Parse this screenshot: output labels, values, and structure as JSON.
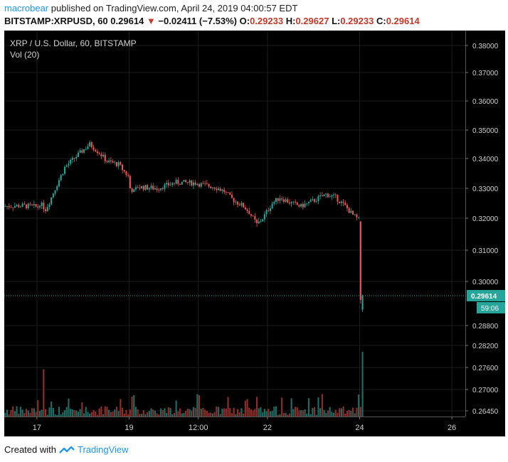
{
  "header": {
    "user": "macrobear",
    "published_text": "published on TradingView.com, April 24, 2019 04:00:57 EDT",
    "symbol_line": "BITSTAMP:XRPUSD, 60",
    "last": "0.29614",
    "change": "−0.02411 (−7.53%)",
    "o_label": "O:",
    "o": "0.29233",
    "h_label": "H:",
    "h": "0.29627",
    "l_label": "L:",
    "l": "0.29233",
    "c_label": "C:",
    "c": "0.29614"
  },
  "footer": {
    "created_with": "Created with",
    "brand": "TradingView"
  },
  "colors": {
    "up": "#26a69a",
    "down": "#ef5350",
    "vol_up": "#1f6b63",
    "vol_down": "#8b2e2c",
    "bg": "#000000",
    "price_line": "#26a69a"
  },
  "chart_data": {
    "type": "candlestick",
    "title": "XRP / U.S. Dollar, 60, BITSTAMP",
    "indicator": "Vol (20)",
    "ylim": [
      0.261,
      0.386
    ],
    "y_ticks": [
      "0.38000",
      "0.37000",
      "0.36000",
      "0.35000",
      "0.34000",
      "0.33000",
      "0.32000",
      "0.31000",
      "0.30000",
      "0.28800",
      "0.28200",
      "0.27600",
      "0.27000",
      "0.26450"
    ],
    "y_tick_values": [
      0.38,
      0.37,
      0.36,
      0.35,
      0.34,
      0.33,
      0.32,
      0.31,
      0.3,
      0.288,
      0.282,
      0.276,
      0.27,
      0.2645
    ],
    "x_ticks": [
      "17",
      "19",
      "12:00",
      "22",
      "24",
      "26"
    ],
    "x_tick_hours": [
      17,
      65,
      101,
      137,
      185,
      233
    ],
    "x_range_hours": [
      0,
      240
    ],
    "last_price": "0.29614",
    "countdown": "59:06",
    "price_path": [
      [
        0,
        0.324
      ],
      [
        10,
        0.3242
      ],
      [
        18,
        0.3238
      ],
      [
        19,
        0.325
      ],
      [
        22,
        0.323
      ],
      [
        24,
        0.3255
      ],
      [
        27,
        0.33
      ],
      [
        32,
        0.337
      ],
      [
        40,
        0.342
      ],
      [
        45,
        0.345
      ],
      [
        50,
        0.342
      ],
      [
        54,
        0.339
      ],
      [
        60,
        0.338
      ],
      [
        65,
        0.334
      ],
      [
        66,
        0.33
      ],
      [
        68,
        0.329
      ],
      [
        70,
        0.3305
      ],
      [
        80,
        0.33
      ],
      [
        85,
        0.331
      ],
      [
        90,
        0.332
      ],
      [
        100,
        0.3318
      ],
      [
        105,
        0.331
      ],
      [
        110,
        0.3305
      ],
      [
        115,
        0.329
      ],
      [
        118,
        0.327
      ],
      [
        120,
        0.326
      ],
      [
        125,
        0.324
      ],
      [
        128,
        0.322
      ],
      [
        132,
        0.318
      ],
      [
        135,
        0.32
      ],
      [
        138,
        0.323
      ],
      [
        140,
        0.325
      ],
      [
        144,
        0.327
      ],
      [
        150,
        0.325
      ],
      [
        155,
        0.324
      ],
      [
        162,
        0.326
      ],
      [
        168,
        0.328
      ],
      [
        173,
        0.327
      ],
      [
        178,
        0.324
      ],
      [
        182,
        0.321
      ],
      [
        186,
        0.319
      ],
      [
        186.5,
        0.295
      ],
      [
        187,
        0.2925
      ],
      [
        187.5,
        0.29614
      ]
    ],
    "volume": {
      "unit": "relative",
      "ylim": [
        0,
        1
      ],
      "notable_spikes_hours": [
        20,
        25,
        186
      ],
      "max_relative": 1.0
    }
  }
}
